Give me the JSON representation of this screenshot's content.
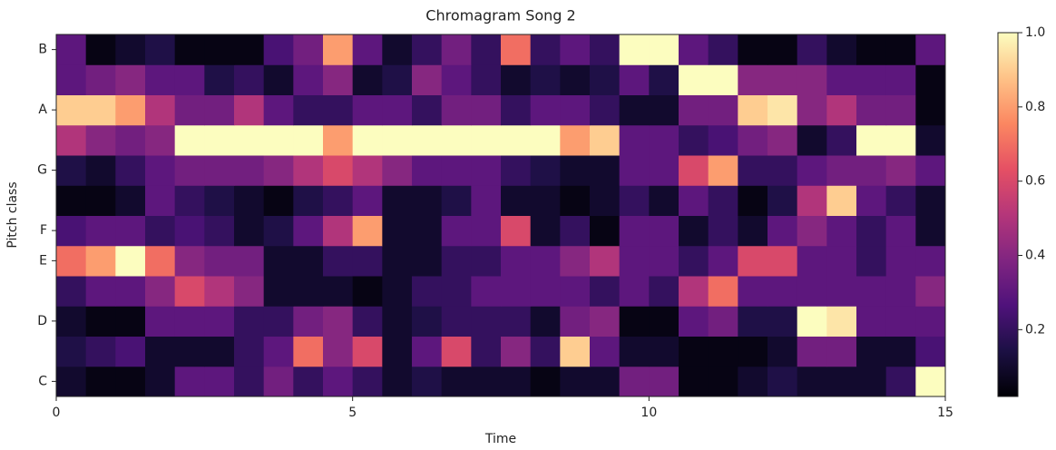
{
  "chart_data": {
    "type": "heatmap",
    "title": "Chromagram Song 2",
    "xlabel": "Time",
    "ylabel": "Pitch class",
    "colormap": "magma",
    "bins": [
      0,
      0.5,
      1,
      1.5,
      2,
      2.5,
      3,
      3.5,
      4,
      4.5,
      5,
      5.5,
      6,
      6.5,
      7,
      7.5,
      8,
      8.5,
      9,
      9.5,
      10,
      10.5,
      11,
      11.5,
      12,
      12.5,
      13,
      13.5,
      14,
      14.5,
      15
    ],
    "categories": [
      "C",
      null,
      "D",
      null,
      "E",
      "F",
      null,
      "G",
      null,
      "A",
      null,
      "B"
    ],
    "values": [
      [
        0.1,
        0.05,
        0.05,
        0.1,
        0.3,
        0.3,
        0.2,
        0.35,
        0.2,
        0.3,
        0.2,
        0.1,
        0.15,
        0.1,
        0.1,
        0.1,
        0.05,
        0.1,
        0.1,
        0.35,
        0.35,
        0.05,
        0.05,
        0.1,
        0.15,
        0.1,
        0.1,
        0.1,
        0.2,
        1.0
      ],
      [
        0.15,
        0.2,
        0.25,
        0.1,
        0.1,
        0.1,
        0.2,
        0.3,
        0.7,
        0.4,
        0.6,
        0.1,
        0.3,
        0.6,
        0.2,
        0.4,
        0.2,
        0.9,
        0.3,
        0.1,
        0.1,
        0.05,
        0.05,
        0.05,
        0.1,
        0.35,
        0.35,
        0.1,
        0.1,
        0.25
      ],
      [
        0.1,
        0.05,
        0.05,
        0.3,
        0.3,
        0.3,
        0.2,
        0.2,
        0.35,
        0.4,
        0.2,
        0.1,
        0.15,
        0.2,
        0.2,
        0.2,
        0.1,
        0.35,
        0.4,
        0.05,
        0.05,
        0.3,
        0.35,
        0.15,
        0.15,
        1.0,
        0.95,
        0.3,
        0.3,
        0.3
      ],
      [
        0.2,
        0.3,
        0.3,
        0.4,
        0.6,
        0.5,
        0.4,
        0.1,
        0.1,
        0.1,
        0.05,
        0.1,
        0.2,
        0.2,
        0.3,
        0.3,
        0.3,
        0.3,
        0.2,
        0.3,
        0.2,
        0.5,
        0.7,
        0.3,
        0.3,
        0.3,
        0.3,
        0.3,
        0.3,
        0.4
      ],
      [
        0.7,
        0.8,
        1.0,
        0.7,
        0.4,
        0.35,
        0.35,
        0.1,
        0.1,
        0.2,
        0.2,
        0.1,
        0.1,
        0.2,
        0.2,
        0.3,
        0.3,
        0.4,
        0.5,
        0.3,
        0.3,
        0.2,
        0.3,
        0.6,
        0.6,
        0.3,
        0.3,
        0.2,
        0.3,
        0.3
      ],
      [
        0.25,
        0.3,
        0.3,
        0.2,
        0.25,
        0.2,
        0.1,
        0.15,
        0.3,
        0.5,
        0.8,
        0.1,
        0.1,
        0.3,
        0.3,
        0.6,
        0.1,
        0.2,
        0.05,
        0.3,
        0.3,
        0.1,
        0.2,
        0.1,
        0.3,
        0.4,
        0.3,
        0.2,
        0.3,
        0.1
      ],
      [
        0.05,
        0.05,
        0.1,
        0.3,
        0.2,
        0.15,
        0.1,
        0.05,
        0.15,
        0.2,
        0.3,
        0.1,
        0.1,
        0.15,
        0.3,
        0.1,
        0.1,
        0.05,
        0.1,
        0.2,
        0.1,
        0.3,
        0.2,
        0.05,
        0.15,
        0.5,
        0.9,
        0.3,
        0.2,
        0.1
      ],
      [
        0.15,
        0.1,
        0.2,
        0.3,
        0.35,
        0.35,
        0.35,
        0.4,
        0.5,
        0.6,
        0.5,
        0.4,
        0.3,
        0.3,
        0.3,
        0.2,
        0.15,
        0.1,
        0.1,
        0.3,
        0.3,
        0.6,
        0.8,
        0.2,
        0.2,
        0.3,
        0.35,
        0.35,
        0.4,
        0.3
      ],
      [
        0.5,
        0.4,
        0.35,
        0.4,
        1.0,
        1.0,
        1.0,
        1.0,
        1.0,
        0.8,
        1.0,
        1.0,
        1.0,
        1.0,
        1.0,
        1.0,
        1.0,
        0.8,
        0.9,
        0.3,
        0.3,
        0.2,
        0.25,
        0.35,
        0.4,
        0.1,
        0.2,
        1.0,
        1.0,
        0.1
      ],
      [
        0.9,
        0.9,
        0.8,
        0.5,
        0.35,
        0.35,
        0.5,
        0.3,
        0.2,
        0.2,
        0.3,
        0.3,
        0.2,
        0.35,
        0.35,
        0.2,
        0.3,
        0.3,
        0.2,
        0.1,
        0.1,
        0.35,
        0.35,
        0.9,
        0.95,
        0.4,
        0.5,
        0.35,
        0.35,
        0.05
      ],
      [
        0.3,
        0.35,
        0.4,
        0.3,
        0.3,
        0.15,
        0.2,
        0.1,
        0.3,
        0.4,
        0.1,
        0.15,
        0.4,
        0.3,
        0.2,
        0.1,
        0.15,
        0.1,
        0.15,
        0.3,
        0.15,
        1.0,
        1.0,
        0.4,
        0.4,
        0.4,
        0.3,
        0.3,
        0.3,
        0.05
      ],
      [
        0.3,
        0.05,
        0.1,
        0.15,
        0.05,
        0.05,
        0.05,
        0.25,
        0.35,
        0.8,
        0.3,
        0.1,
        0.2,
        0.35,
        0.2,
        0.7,
        0.2,
        0.3,
        0.2,
        1.0,
        1.0,
        0.3,
        0.2,
        0.05,
        0.05,
        0.2,
        0.1,
        0.05,
        0.05,
        0.3
      ]
    ],
    "xlim": [
      0,
      15
    ],
    "xticks": [
      0,
      5,
      10,
      15
    ],
    "clim": [
      0.02,
      1.0
    ],
    "cticks": [
      0.2,
      0.4,
      0.6,
      0.8,
      {
        "value": 1.0,
        "label": "1.0"
      }
    ]
  }
}
